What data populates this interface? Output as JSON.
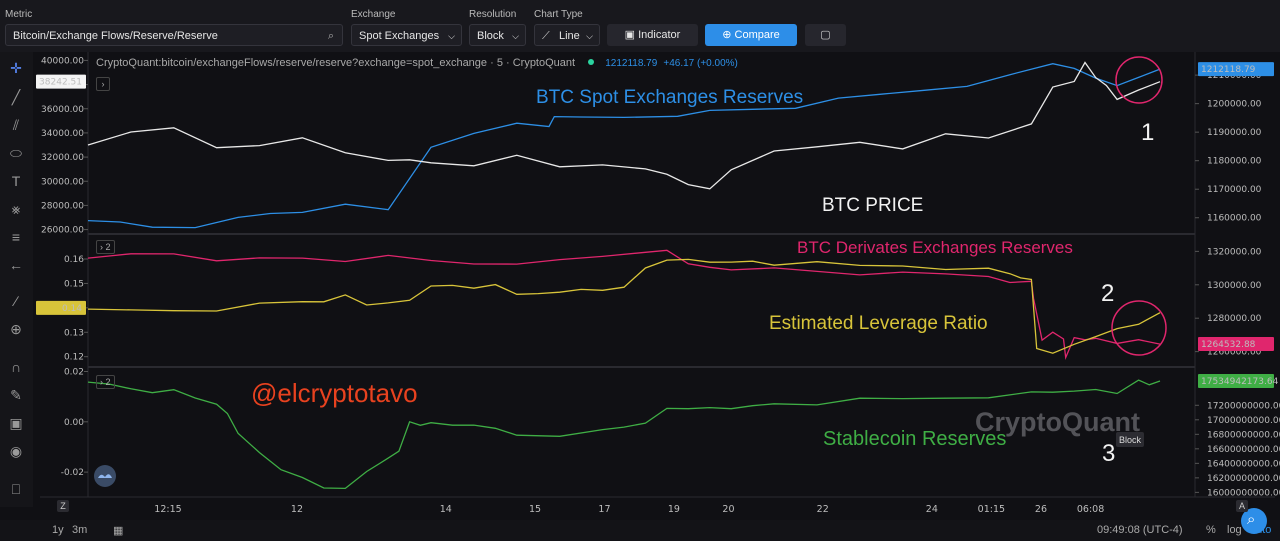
{
  "toolbar": {
    "metric_label": "Metric",
    "metric_value": "Bitcoin/Exchange Flows/Reserve/Reserve",
    "exchange_label": "Exchange",
    "exchange_value": "Spot Exchanges",
    "resolution_label": "Resolution",
    "resolution_value": "Block",
    "charttype_label": "Chart Type",
    "charttype_value": "Line",
    "indicator_label": "Indicator",
    "compare_label": "Compare"
  },
  "legend": {
    "source": "CryptoQuant:bitcoin/exchangeFlows/reserve/reserve?exchange=spot_exchange · 5 · CryptoQuant",
    "value": "1212118.79",
    "change": "+46.17 (+0.00%)"
  },
  "panes": {
    "p2": "2",
    "p3": "2"
  },
  "bottom": {
    "range_1y": "1y",
    "range_3m": "3m",
    "time": "09:49:08 (UTC-4)",
    "pct": "%",
    "log": "log",
    "auto": "auto"
  },
  "watermark": "CryptoQuant",
  "tooltip": "Block",
  "colors": {
    "spot": "#2d8fe6",
    "price": "#e8e8e8",
    "deriv": "#e0266d",
    "lev": "#d8c43a",
    "stable": "#3fae45",
    "bg": "#101014",
    "accent": "#2d8ee8"
  },
  "chart_data": [
    {
      "type": "line",
      "pane": 1,
      "x_ticks": [
        "12:15",
        "12",
        "14",
        "15",
        "17",
        "19",
        "20",
        "22",
        "24",
        "01:15",
        "26",
        "06:08"
      ],
      "left_ticks": [
        26000,
        28000,
        30000,
        32000,
        34000,
        36000,
        38000,
        40000
      ],
      "right_ticks": [
        1160000,
        1170000,
        1180000,
        1190000,
        1200000,
        1210000
      ],
      "left_label": "38242.51",
      "right_label": "1212118.79",
      "annotations": [
        "BTC Spot Exchanges Reserves",
        "BTC PRICE",
        "1"
      ],
      "series": [
        {
          "x": [
            0,
            3,
            6,
            10,
            14,
            17,
            20,
            24,
            28,
            32,
            36,
            40,
            43,
            43.2,
            43.5,
            46,
            50,
            55,
            58,
            62,
            66,
            70,
            74,
            78,
            82,
            86,
            90,
            92,
            94,
            96,
            98,
            100
          ],
          "values": [
            1159000,
            1158200,
            1157000,
            1157500,
            1159500,
            1161500,
            1162500,
            1163800,
            1162500,
            1185000,
            1190500,
            1192500,
            1192000,
            1194000,
            1194500,
            1195000,
            1195500,
            1196500,
            1197000,
            1198000,
            1199000,
            1201000,
            1203000,
            1205000,
            1207000,
            1209500,
            1214000,
            1213000,
            1208000,
            1206000,
            1209500,
            1212119
          ]
        },
        {
          "x": [
            0,
            4,
            8,
            12,
            16,
            20,
            24,
            28,
            30,
            32,
            36,
            40,
            44,
            48,
            52,
            54,
            56,
            58,
            60,
            64,
            68,
            72,
            76,
            80,
            84,
            88,
            90,
            92,
            93,
            94,
            95,
            96,
            98,
            100
          ],
          "values": [
            33000,
            34000,
            34500,
            33000,
            32800,
            33600,
            32500,
            31500,
            31700,
            31600,
            31500,
            32000,
            31200,
            31500,
            30800,
            30500,
            29800,
            29600,
            30800,
            32500,
            33000,
            33000,
            32600,
            34000,
            33800,
            34600,
            37800,
            38400,
            39600,
            38500,
            38000,
            37000,
            37400,
            38242
          ]
        }
      ]
    },
    {
      "type": "line",
      "pane": 2,
      "left_ticks": [
        0.12,
        0.13,
        0.14,
        0.15,
        0.16
      ],
      "right_ticks": [
        1260000,
        1280000,
        1300000,
        1320000
      ],
      "left_label": "0.14",
      "right_label": "1264532.88",
      "annotations": [
        "BTC Derivates Exchanges Reserves",
        "Estimated Leverage Ratio",
        "2"
      ],
      "series": [
        {
          "x": [
            0,
            4,
            8,
            12,
            16,
            20,
            24,
            28,
            32,
            36,
            40,
            44,
            48,
            52,
            54,
            56,
            58,
            60,
            64,
            68,
            72,
            76,
            80,
            84,
            86,
            88,
            88.2,
            89,
            90,
            91,
            91.2,
            92,
            93,
            94,
            96,
            98,
            100
          ],
          "values": [
            1316000,
            1318000,
            1319000,
            1316000,
            1315000,
            1316000,
            1315000,
            1316000,
            1314000,
            1313000,
            1314000,
            1314000,
            1317000,
            1320500,
            1319000,
            1312000,
            1311000,
            1310500,
            1309000,
            1308000,
            1307000,
            1306000,
            1306000,
            1305500,
            1303000,
            1301000,
            1292000,
            1268000,
            1270000,
            1267000,
            1257000,
            1270000,
            1266000,
            1268000,
            1266000,
            1265500,
            1264533
          ]
        },
        {
          "x": [
            0,
            4,
            8,
            12,
            16,
            20,
            22,
            24,
            26,
            28,
            30,
            32,
            34,
            36,
            38,
            40,
            42,
            44,
            46,
            48,
            50,
            52,
            54,
            56,
            58,
            60,
            62,
            64,
            68,
            72,
            76,
            80,
            84,
            86,
            87,
            88,
            88.5,
            90,
            92,
            94,
            96,
            98,
            100
          ],
          "values": [
            0.1395,
            0.1388,
            0.1392,
            0.1398,
            0.1412,
            0.1425,
            0.1432,
            0.1442,
            0.1408,
            0.1424,
            0.1442,
            0.1482,
            0.1492,
            0.1488,
            0.1484,
            0.1452,
            0.1462,
            0.1475,
            0.1468,
            0.1472,
            0.1492,
            0.1552,
            0.1592,
            0.1602,
            0.1598,
            0.158,
            0.1591,
            0.1582,
            0.1578,
            0.157,
            0.1575,
            0.1568,
            0.1555,
            0.154,
            0.153,
            0.1505,
            0.123,
            0.1218,
            0.1262,
            0.1275,
            0.1315,
            0.134,
            0.138
          ]
        }
      ]
    },
    {
      "type": "line",
      "pane": 3,
      "left_ticks": [
        -0.02,
        0.0,
        0.02
      ],
      "right_ticks": [
        16000000000,
        16200000000,
        16400000000,
        16600000000,
        16800000000,
        17000000000,
        17200000000
      ],
      "right_label": "17534942173.64",
      "annotations": [
        "@elcryptotavo",
        "Stablecoin Reserves",
        "3"
      ],
      "series": [
        {
          "x": [
            0,
            2,
            4,
            6,
            8,
            10,
            12,
            13,
            14,
            16,
            18,
            20,
            22,
            24,
            26,
            28,
            29,
            30,
            31,
            32,
            34,
            36,
            38,
            40,
            44,
            48,
            50,
            52,
            54,
            56,
            58,
            60,
            62,
            64,
            68,
            72,
            76,
            80,
            84,
            88,
            90,
            92,
            94,
            96,
            98,
            99,
            100
          ],
          "values": [
            17520000000,
            17480000000,
            17440000000,
            17410000000,
            17390000000,
            17300000000,
            17240000000,
            17050000000,
            16800000000,
            16560000000,
            16350000000,
            16180000000,
            16060000000,
            16080000000,
            16250000000,
            16460000000,
            16580000000,
            17010000000,
            16900000000,
            16960000000,
            16950000000,
            16890000000,
            16870000000,
            16800000000,
            16810000000,
            16840000000,
            16900000000,
            16980000000,
            17120000000,
            17140000000,
            17180000000,
            17190000000,
            17170000000,
            17220000000,
            17230000000,
            17260000000,
            17280000000,
            17310000000,
            17340000000,
            17360000000,
            17380000000,
            17420000000,
            17380000000,
            17350000000,
            17560000000,
            17520000000,
            17534942174
          ]
        }
      ]
    }
  ]
}
